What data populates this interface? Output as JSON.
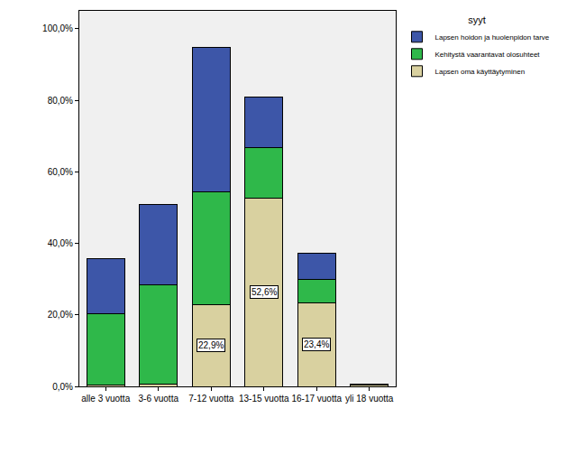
{
  "chart_data": {
    "type": "bar",
    "stacked": true,
    "legend_title": "syyt",
    "legend": "top right",
    "categories": [
      "alle 3 vuotta",
      "3-6 vuotta",
      "7-12 vuotta",
      "13-15 vuotta",
      "16-17 vuotta",
      "yli 18 vuotta"
    ],
    "series": [
      {
        "name": "Lapsen oma käyttäytyminen",
        "color": "#d9d1a0",
        "values": [
          0.5,
          0.7,
          22.9,
          52.6,
          23.4,
          0.3
        ],
        "data_labels": true,
        "value_labels": [
          null,
          null,
          "22,9%",
          "52,6%",
          "23,4%",
          null
        ]
      },
      {
        "name": "Kehitystä vaarantavat olosuhteet",
        "color": "#2fb84a",
        "values": [
          19.8,
          27.8,
          31.6,
          14.1,
          6.6,
          0.2
        ]
      },
      {
        "name": "Lapsen hoidon ja huolenpidon tarve",
        "color": "#3d56a8",
        "values": [
          15.4,
          22.3,
          40.3,
          14.3,
          7.3,
          0.2
        ]
      }
    ],
    "ylim": [
      0,
      105
    ],
    "yticks": [
      {
        "value": 0,
        "label": "0,0%"
      },
      {
        "value": 20,
        "label": "20,0%"
      },
      {
        "value": 40,
        "label": "40,0%"
      },
      {
        "value": 60,
        "label": "60,0%"
      },
      {
        "value": 80,
        "label": "80,0%"
      },
      {
        "value": 100,
        "label": "100,0%"
      }
    ],
    "grid": false
  }
}
